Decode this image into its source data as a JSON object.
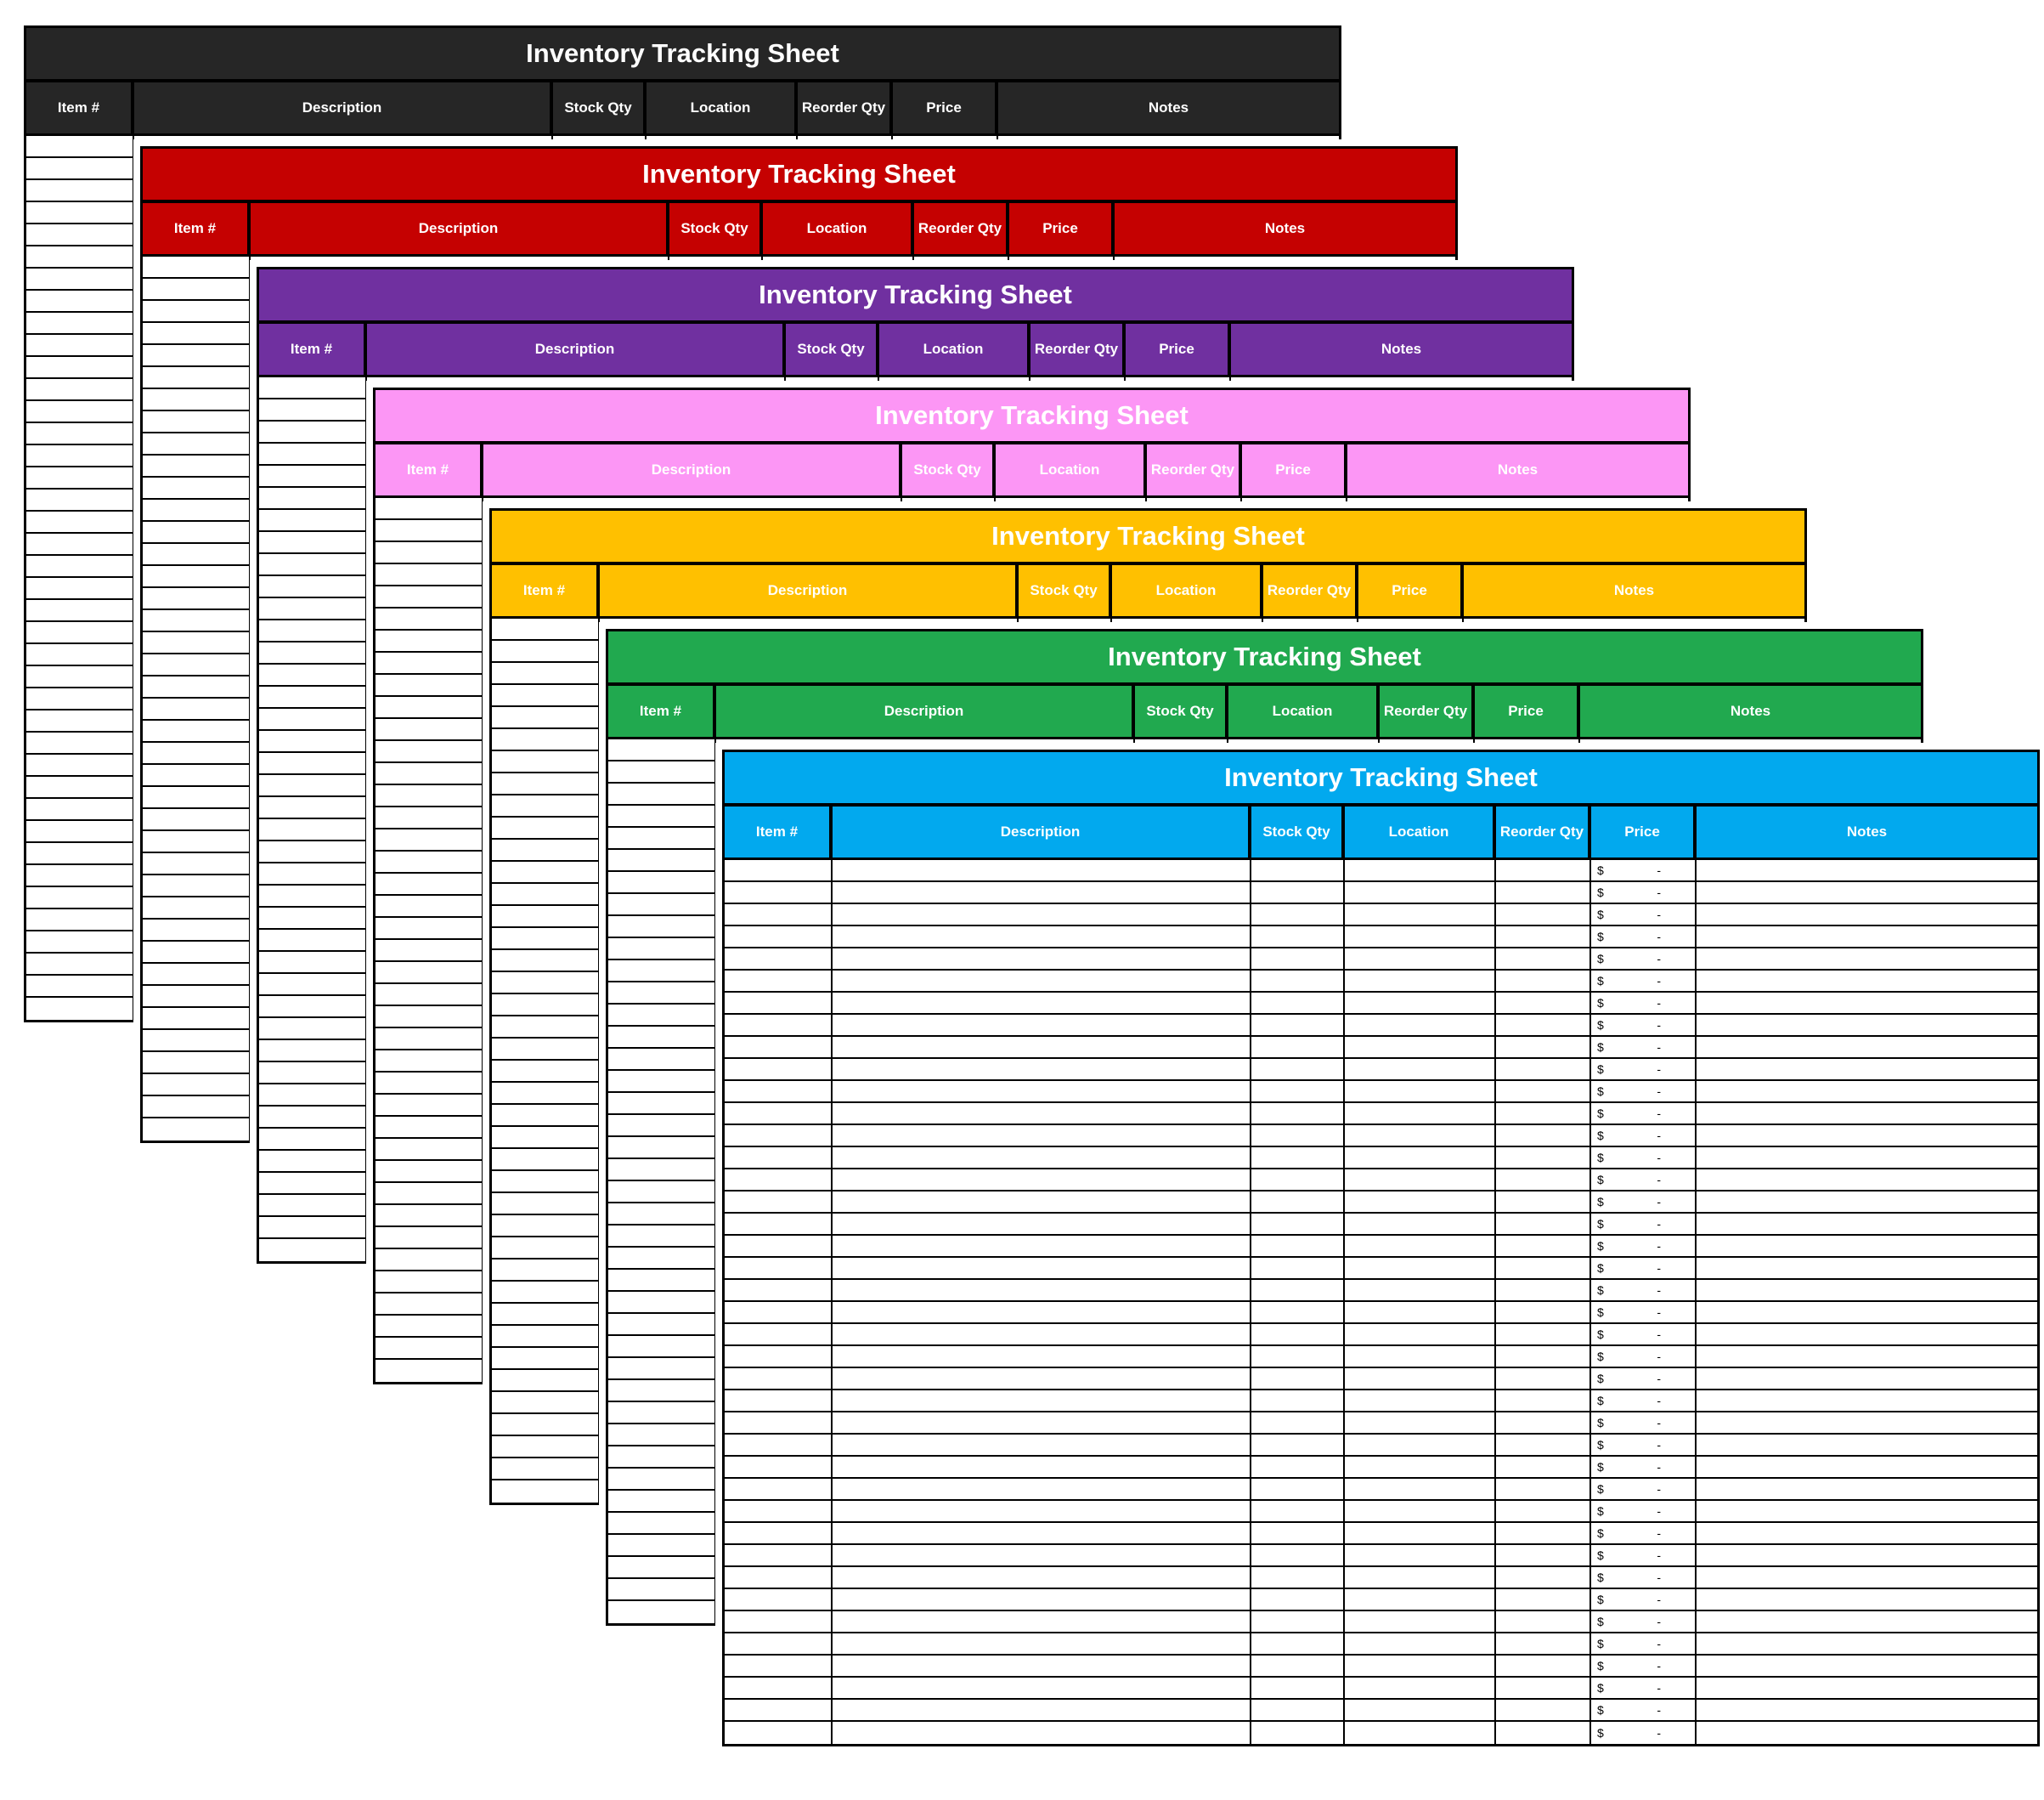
{
  "page": {
    "background_color": "#ffffff"
  },
  "sheet_template": {
    "title": "Inventory Tracking Sheet",
    "columns": [
      "Item #",
      "Description",
      "Stock Qty",
      "Location",
      "Reorder Qty",
      "Price",
      "Notes"
    ],
    "column_slugs": [
      "item-number",
      "description",
      "stock-qty",
      "location",
      "reorder-qty",
      "price",
      "notes"
    ],
    "row_count": 40,
    "price_currency": "$",
    "price_value": "-",
    "border_color": "#000000",
    "row_background": "#ffffff",
    "header_text_color": "#ffffff"
  },
  "sheets": [
    {
      "name": "black",
      "accent": "#262626"
    },
    {
      "name": "red",
      "accent": "#c50101"
    },
    {
      "name": "purple",
      "accent": "#7030a0"
    },
    {
      "name": "pink",
      "accent": "#fc96f5"
    },
    {
      "name": "gold",
      "accent": "#ffc000"
    },
    {
      "name": "green",
      "accent": "#21a94f"
    },
    {
      "name": "blue",
      "accent": "#02a9ee"
    }
  ]
}
